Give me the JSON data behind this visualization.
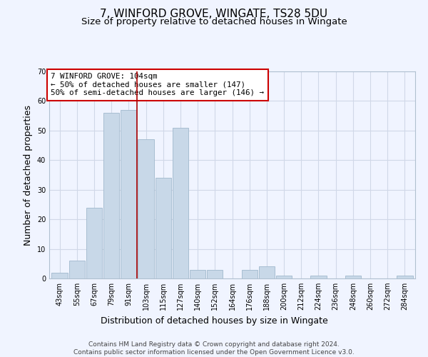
{
  "title": "7, WINFORD GROVE, WINGATE, TS28 5DU",
  "subtitle": "Size of property relative to detached houses in Wingate",
  "xlabel": "Distribution of detached houses by size in Wingate",
  "ylabel": "Number of detached properties",
  "bin_labels": [
    "43sqm",
    "55sqm",
    "67sqm",
    "79sqm",
    "91sqm",
    "103sqm",
    "115sqm",
    "127sqm",
    "140sqm",
    "152sqm",
    "164sqm",
    "176sqm",
    "188sqm",
    "200sqm",
    "212sqm",
    "224sqm",
    "236sqm",
    "248sqm",
    "260sqm",
    "272sqm",
    "284sqm"
  ],
  "bar_heights": [
    2,
    6,
    24,
    56,
    57,
    47,
    34,
    51,
    3,
    3,
    0,
    3,
    4,
    1,
    0,
    1,
    0,
    1,
    0,
    0,
    1
  ],
  "bar_color": "#c8d8e8",
  "bar_edge_color": "#a0b8cc",
  "highlight_line_color": "#aa0000",
  "annotation_text": "7 WINFORD GROVE: 104sqm\n← 50% of detached houses are smaller (147)\n50% of semi-detached houses are larger (146) →",
  "annotation_box_edgecolor": "#cc0000",
  "ylim": [
    0,
    70
  ],
  "yticks": [
    0,
    10,
    20,
    30,
    40,
    50,
    60,
    70
  ],
  "footnote": "Contains HM Land Registry data © Crown copyright and database right 2024.\nContains public sector information licensed under the Open Government Licence v3.0.",
  "bg_color": "#f0f4ff",
  "plot_bg_color": "#f0f4ff",
  "grid_color": "#d0d8e8",
  "title_fontsize": 11,
  "subtitle_fontsize": 9.5,
  "axis_label_fontsize": 9,
  "tick_fontsize": 7,
  "footnote_fontsize": 6.5
}
